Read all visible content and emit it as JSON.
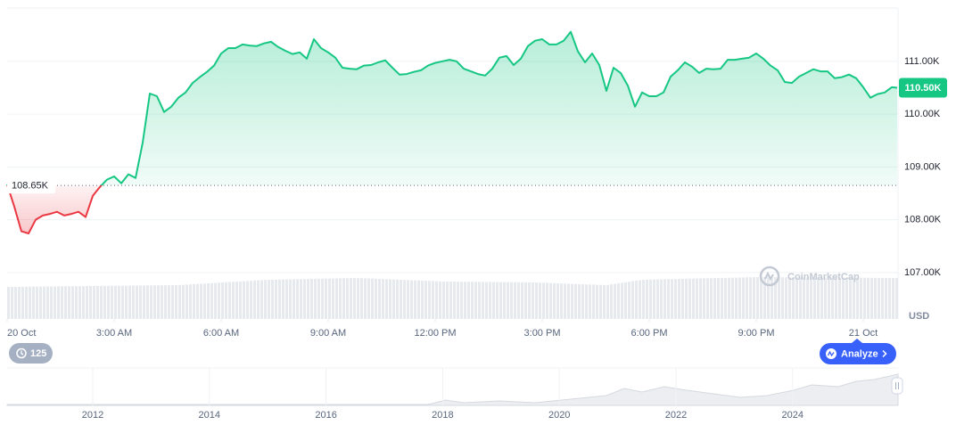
{
  "chart_data": {
    "type": "line",
    "x": [
      0,
      0.2,
      0.4,
      0.6,
      0.8,
      1,
      1.2,
      1.4,
      1.6,
      1.8,
      2,
      2.2,
      2.4,
      2.6,
      2.8,
      3,
      3.2,
      3.4,
      3.6,
      3.8,
      4,
      4.2,
      4.4,
      4.6,
      4.8,
      5,
      5.2,
      5.4,
      5.6,
      5.8,
      6,
      6.2,
      6.4,
      6.6,
      6.8,
      7,
      7.2,
      7.4,
      7.6,
      7.8,
      8,
      8.2,
      8.4,
      8.6,
      8.8,
      9,
      9.2,
      9.4,
      9.6,
      9.8,
      10,
      10.2,
      10.4,
      10.6,
      10.8,
      11,
      11.2,
      11.4,
      11.6,
      11.8,
      12,
      12.2,
      12.4,
      12.6,
      12.8,
      13,
      13.2,
      13.4,
      13.6,
      13.8,
      14,
      14.2,
      14.4,
      14.6,
      14.8,
      15,
      15.2,
      15.4,
      15.6,
      15.8,
      16,
      16.2,
      16.4,
      16.6,
      16.8,
      17,
      17.2,
      17.4,
      17.6,
      17.8,
      18,
      18.2,
      18.4,
      18.6,
      18.8,
      19,
      19.2,
      19.4,
      19.6,
      19.8,
      20,
      20.2,
      20.4,
      20.6,
      20.8,
      21,
      21.2,
      21.4,
      21.6,
      21.8,
      22,
      22.2,
      22.4,
      22.6,
      22.8,
      23,
      23.2,
      23.4,
      23.6,
      23.8,
      24,
      24.2,
      24.4,
      24.6,
      24.8,
      24.95
    ],
    "series": [
      {
        "color": "#16c784",
        "down_color": "#ea3943",
        "values": [
          108.67,
          108.25,
          107.78,
          107.74,
          108.0,
          108.08,
          108.11,
          108.15,
          108.08,
          108.11,
          108.15,
          108.05,
          108.45,
          108.62,
          108.76,
          108.82,
          108.69,
          108.86,
          108.79,
          109.46,
          110.39,
          110.34,
          110.04,
          110.14,
          110.31,
          110.41,
          110.59,
          110.7,
          110.8,
          110.92,
          111.15,
          111.25,
          111.25,
          111.32,
          111.3,
          111.29,
          111.34,
          111.37,
          111.27,
          111.2,
          111.14,
          111.17,
          111.05,
          111.42,
          111.25,
          111.17,
          111.07,
          110.88,
          110.86,
          110.85,
          110.92,
          110.93,
          110.98,
          111.02,
          110.88,
          110.75,
          110.76,
          110.8,
          110.83,
          110.92,
          110.97,
          111.0,
          111.03,
          111.0,
          110.86,
          110.81,
          110.76,
          110.73,
          110.86,
          111.07,
          111.1,
          110.93,
          111.05,
          111.29,
          111.39,
          111.42,
          111.32,
          111.32,
          111.39,
          111.56,
          111.19,
          110.98,
          111.15,
          110.93,
          110.44,
          110.88,
          110.78,
          110.54,
          110.14,
          110.41,
          110.34,
          110.34,
          110.41,
          110.71,
          110.83,
          110.98,
          110.9,
          110.78,
          110.86,
          110.85,
          110.86,
          111.03,
          111.03,
          111.05,
          111.07,
          111.15,
          111.05,
          110.92,
          110.83,
          110.61,
          110.59,
          110.71,
          110.78,
          110.85,
          110.81,
          110.81,
          110.68,
          110.7,
          110.75,
          110.68,
          110.51,
          110.31,
          110.38,
          110.41,
          110.51,
          110.5
        ],
        "last_value_label": "110.50K"
      }
    ],
    "xlim": [
      0,
      24.975
    ],
    "xticks": [
      {
        "value": 0,
        "label": "20 Oct"
      },
      {
        "value": 3,
        "label": "3:00 AM"
      },
      {
        "value": 6,
        "label": "6:00 AM"
      },
      {
        "value": 9,
        "label": "9:00 AM"
      },
      {
        "value": 12,
        "label": "12:00 PM"
      },
      {
        "value": 15,
        "label": "3:00 PM"
      },
      {
        "value": 18,
        "label": "6:00 PM"
      },
      {
        "value": 21,
        "label": "9:00 PM"
      },
      {
        "value": 24,
        "label": "21 Oct"
      }
    ],
    "ylim": [
      106.12,
      112.01
    ],
    "yticks": [
      {
        "value": 107,
        "label": "107.00K"
      },
      {
        "value": 108,
        "label": "108.00K"
      },
      {
        "value": 109,
        "label": "109.00K"
      },
      {
        "value": 110,
        "label": "110.00K"
      },
      {
        "value": 111,
        "label": "111.00K"
      }
    ],
    "y_axis_unit": "USD",
    "baseline": {
      "value": 108.65,
      "label": "108.65K"
    },
    "grid": true,
    "watermark": "CoinMarketCap"
  },
  "controls": {
    "history_count": "125",
    "analyze": "Analyze"
  },
  "navigator": {
    "years": [
      "2012",
      "2014",
      "2016",
      "2018",
      "2020",
      "2022",
      "2024"
    ]
  }
}
